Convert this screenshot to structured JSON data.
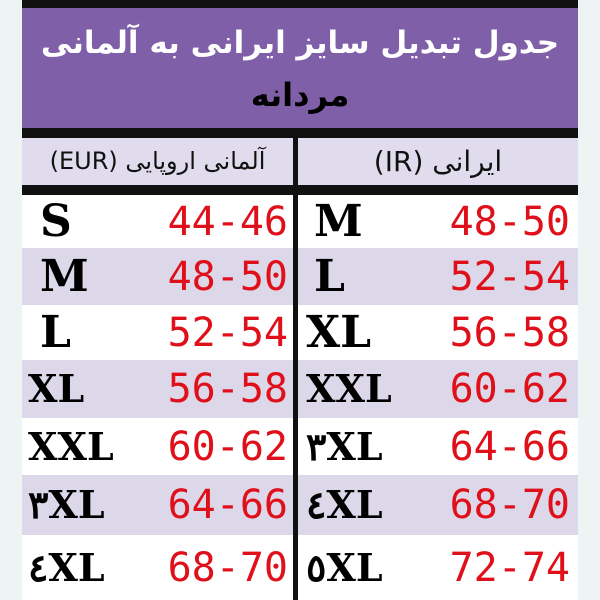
{
  "title": "جدول تبدیل سایز ایرانی به آلمانی",
  "subtitle": "مردانه",
  "headers": {
    "eur": "آلمانی اروپایی (EUR)",
    "ir": "ایرانی (IR)"
  },
  "colors": {
    "banner": "#7f5fa8",
    "number": "#e0101a",
    "alt_row": "#dcd8ea"
  },
  "rows": [
    {
      "eur_size": "S",
      "eur_range": "44-46",
      "ir_size": "M",
      "ir_range": "48-50"
    },
    {
      "eur_size": "M",
      "eur_range": "48-50",
      "ir_size": "L",
      "ir_range": "52-54"
    },
    {
      "eur_size": "L",
      "eur_range": "52-54",
      "ir_size": "XL",
      "ir_range": "56-58"
    },
    {
      "eur_size": "XL",
      "eur_range": "56-58",
      "ir_size": "XXL",
      "ir_range": "60-62"
    },
    {
      "eur_size": "XXL",
      "eur_range": "60-62",
      "ir_size": "۳XL",
      "ir_range": "64-66"
    },
    {
      "eur_size": "۳XL",
      "eur_range": "64-66",
      "ir_size": "٤XL",
      "ir_range": "68-70"
    },
    {
      "eur_size": "٤XL",
      "eur_range": "68-70",
      "ir_size": "٥XL",
      "ir_range": "72-74"
    }
  ]
}
